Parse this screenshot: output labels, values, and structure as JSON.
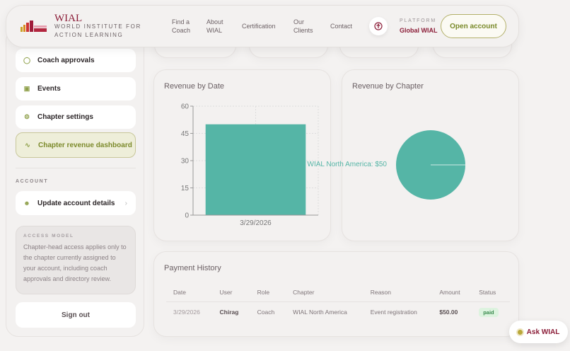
{
  "header": {
    "brand": "WIAL",
    "brand_sub": "WORLD INSTITUTE FOR ACTION LEARNING",
    "nav": [
      {
        "label": "Find a Coach"
      },
      {
        "label": "About WIAL"
      },
      {
        "label": "Certification"
      },
      {
        "label": "Our Clients"
      },
      {
        "label": "Contact"
      }
    ],
    "platform_label": "PLATFORM",
    "platform_value": "Global WIAL",
    "open_account": "Open account",
    "globe_icon": "accessibility-icon"
  },
  "sidebar": {
    "items": [
      {
        "label": "Coach approvals",
        "icon": "users-icon"
      },
      {
        "label": "Events",
        "icon": "calendar-icon"
      },
      {
        "label": "Chapter settings",
        "icon": "gear-icon"
      },
      {
        "label": "Chapter revenue dashboard",
        "icon": "chart-icon",
        "active": true
      }
    ],
    "account_heading": "ACCOUNT",
    "update_account": "Update account details",
    "access_title": "ACCESS MODEL",
    "access_text": "Chapter-head access applies only to the chapter currently assigned to your account, including coach approvals and directory review.",
    "sign_out": "Sign out"
  },
  "colors": {
    "accent": "#8b1d38",
    "olive": "#7c8a2b",
    "chart": "#55b5a6"
  },
  "chart_data": [
    {
      "type": "bar",
      "title": "Revenue by Date",
      "categories": [
        "3/29/2026"
      ],
      "values": [
        50
      ],
      "ylim": [
        0,
        60
      ],
      "yticks": [
        0,
        15,
        30,
        45,
        60
      ],
      "grid": true
    },
    {
      "type": "pie",
      "title": "Revenue by Chapter",
      "labels": [
        "WIAL North America"
      ],
      "values": [
        50
      ],
      "slice_labels": [
        "WIAL North America: $50"
      ]
    }
  ],
  "payments": {
    "title": "Payment History",
    "columns": [
      "Date",
      "User",
      "Role",
      "Chapter",
      "Reason",
      "Amount",
      "Status"
    ],
    "rows": [
      [
        "3/29/2026",
        "Chirag",
        "Coach",
        "WIAL North America",
        "Event registration",
        "$50.00",
        "paid"
      ]
    ]
  },
  "ask": "Ask WIAL"
}
